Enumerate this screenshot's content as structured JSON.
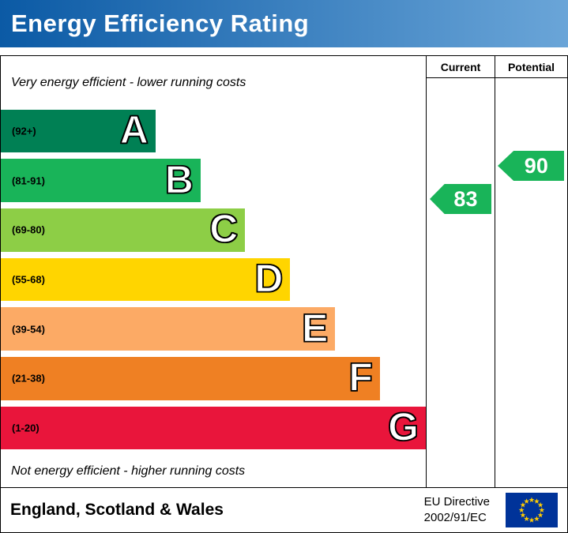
{
  "header": {
    "title": "Energy Efficiency Rating"
  },
  "colors": {
    "header_gradient_from": "#0b5aa5",
    "header_gradient_to": "#6aa5d8",
    "border": "#000000",
    "flag_bg": "#003399",
    "flag_star": "#ffcc00"
  },
  "table": {
    "current_label": "Current",
    "potential_label": "Potential",
    "top_note": "Very energy efficient - lower running costs",
    "bottom_note": "Not energy efficient - higher running costs"
  },
  "chart_data": {
    "type": "bar",
    "title": "Energy Efficiency Rating",
    "bands": [
      {
        "letter": "A",
        "range": "(92+)",
        "color": "#008054",
        "width_pct": 36.4
      },
      {
        "letter": "B",
        "range": "(81-91)",
        "color": "#19b459",
        "width_pct": 47.0
      },
      {
        "letter": "C",
        "range": "(69-80)",
        "color": "#8dce46",
        "width_pct": 57.5
      },
      {
        "letter": "D",
        "range": "(55-68)",
        "color": "#ffd500",
        "width_pct": 68.1
      },
      {
        "letter": "E",
        "range": "(39-54)",
        "color": "#fcaa65",
        "width_pct": 78.7
      },
      {
        "letter": "F",
        "range": "(21-38)",
        "color": "#ef8023",
        "width_pct": 89.2
      },
      {
        "letter": "G",
        "range": "(1-20)",
        "color": "#e9153b",
        "width_pct": 100
      }
    ],
    "current": {
      "value": 83,
      "color": "#19b459"
    },
    "potential": {
      "value": 90,
      "color": "#19b459"
    }
  },
  "footer": {
    "region": "England, Scotland & Wales",
    "directive": [
      "EU Directive",
      "2002/91/EC"
    ]
  }
}
